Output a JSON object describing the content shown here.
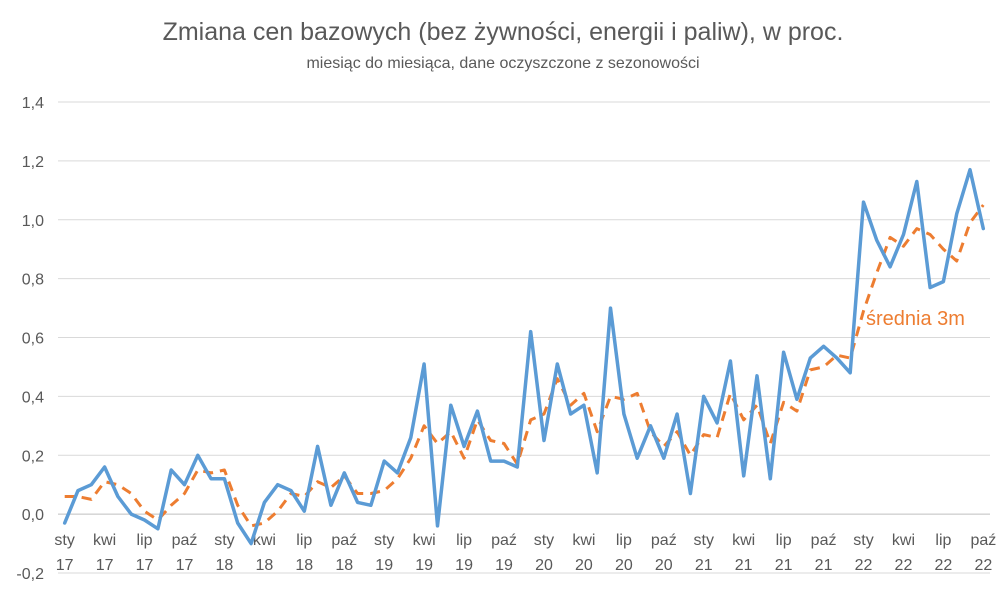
{
  "chart_data": {
    "type": "line",
    "title": "Zmiana cen bazowych (bez żywności, energii i paliw), w proc.",
    "subtitle": "miesiąc do miesiąca, dane oczyszczone z sezonowości",
    "ylim": [
      -0.2,
      1.4
    ],
    "y_ticks": [
      "-0,2",
      "0,0",
      "0,2",
      "0,4",
      "0,6",
      "0,8",
      "1,0",
      "1,2",
      "1,4"
    ],
    "y_tick_values": [
      -0.2,
      0,
      0.2,
      0.4,
      0.6,
      0.8,
      1.0,
      1.2,
      1.4
    ],
    "grid": true,
    "x_tick_labels": [
      {
        "month": "sty",
        "year": "17",
        "index": 0
      },
      {
        "month": "kwi",
        "year": "17",
        "index": 3
      },
      {
        "month": "lip",
        "year": "17",
        "index": 6
      },
      {
        "month": "paź",
        "year": "17",
        "index": 9
      },
      {
        "month": "sty",
        "year": "18",
        "index": 12
      },
      {
        "month": "kwi",
        "year": "18",
        "index": 15
      },
      {
        "month": "lip",
        "year": "18",
        "index": 18
      },
      {
        "month": "paź",
        "year": "18",
        "index": 21
      },
      {
        "month": "sty",
        "year": "19",
        "index": 24
      },
      {
        "month": "kwi",
        "year": "19",
        "index": 27
      },
      {
        "month": "lip",
        "year": "19",
        "index": 30
      },
      {
        "month": "paź",
        "year": "19",
        "index": 33
      },
      {
        "month": "sty",
        "year": "20",
        "index": 36
      },
      {
        "month": "kwi",
        "year": "20",
        "index": 39
      },
      {
        "month": "lip",
        "year": "20",
        "index": 42
      },
      {
        "month": "paź",
        "year": "20",
        "index": 45
      },
      {
        "month": "sty",
        "year": "21",
        "index": 48
      },
      {
        "month": "kwi",
        "year": "21",
        "index": 51
      },
      {
        "month": "lip",
        "year": "21",
        "index": 54
      },
      {
        "month": "paź",
        "year": "21",
        "index": 57
      },
      {
        "month": "sty",
        "year": "22",
        "index": 60
      },
      {
        "month": "kwi",
        "year": "22",
        "index": 63
      },
      {
        "month": "lip",
        "year": "22",
        "index": 66
      },
      {
        "month": "paź",
        "year": "22",
        "index": 69
      }
    ],
    "series": [
      {
        "key": "monthly",
        "color": "#5B9BD5",
        "style": "solid",
        "values": [
          -0.03,
          0.08,
          0.1,
          0.16,
          0.06,
          0.0,
          -0.02,
          -0.05,
          0.15,
          0.1,
          0.2,
          0.12,
          0.12,
          -0.03,
          -0.1,
          0.04,
          0.1,
          0.08,
          0.01,
          0.23,
          0.03,
          0.14,
          0.04,
          0.03,
          0.18,
          0.14,
          0.26,
          0.51,
          -0.04,
          0.37,
          0.23,
          0.35,
          0.18,
          0.18,
          0.16,
          0.62,
          0.25,
          0.51,
          0.34,
          0.37,
          0.14,
          0.7,
          0.34,
          0.19,
          0.3,
          0.19,
          0.34,
          0.07,
          0.4,
          0.31,
          0.52,
          0.13,
          0.47,
          0.12,
          0.55,
          0.39,
          0.53,
          0.57,
          0.53,
          0.48,
          1.06,
          0.93,
          0.84,
          0.95,
          1.13,
          0.77,
          0.79,
          1.02,
          1.17,
          0.97
        ]
      },
      {
        "key": "avg3m",
        "name": "średnia 3m",
        "color": "#ED7D31",
        "style": "dashed",
        "values": [
          0.06,
          0.06,
          0.05,
          0.11,
          0.1,
          0.07,
          0.01,
          -0.02,
          0.03,
          0.07,
          0.15,
          0.14,
          0.15,
          0.03,
          -0.04,
          -0.03,
          0.01,
          0.07,
          0.06,
          0.11,
          0.09,
          0.13,
          0.07,
          0.07,
          0.08,
          0.12,
          0.19,
          0.3,
          0.24,
          0.28,
          0.19,
          0.32,
          0.25,
          0.24,
          0.17,
          0.32,
          0.34,
          0.46,
          0.37,
          0.41,
          0.28,
          0.4,
          0.39,
          0.41,
          0.28,
          0.23,
          0.28,
          0.2,
          0.27,
          0.26,
          0.41,
          0.32,
          0.37,
          0.24,
          0.38,
          0.35,
          0.49,
          0.5,
          0.54,
          0.53,
          0.69,
          0.82,
          0.94,
          0.91,
          0.97,
          0.95,
          0.9,
          0.86,
          0.99,
          1.05
        ]
      }
    ],
    "annotation": {
      "text": "średnia 3m",
      "color": "#ED7D31"
    }
  }
}
